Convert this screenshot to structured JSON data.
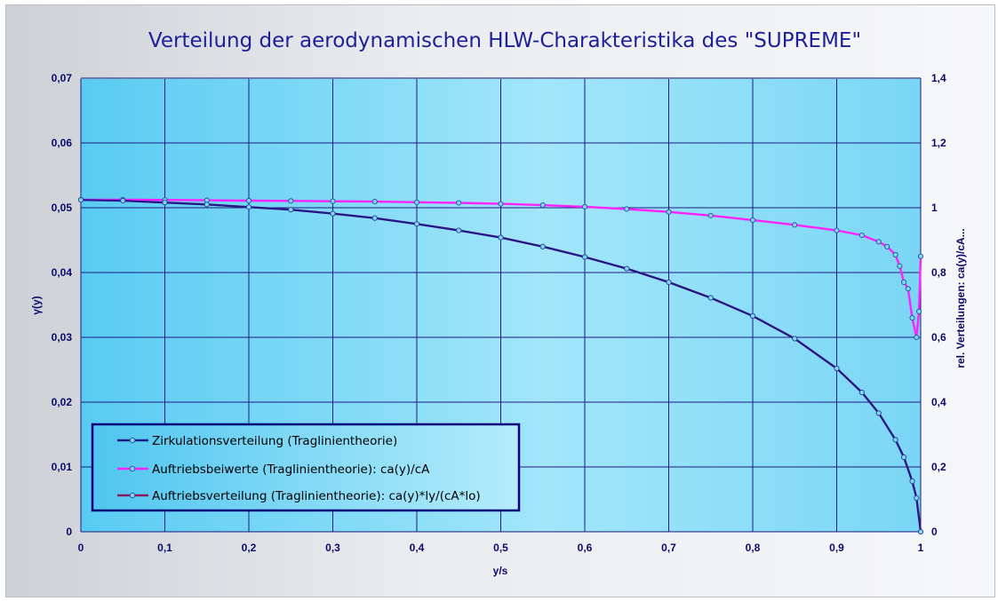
{
  "chart_data": {
    "type": "line",
    "title": "Verteilung der aerodynamischen HLW-Charakteristika des \"SUPREME\"",
    "xlabel": "y/s",
    "ylabel": "γ(y)",
    "y2label": "rel. Verteilungen: ca(y)/cA...",
    "xlim": [
      0,
      1
    ],
    "ylim": [
      0,
      0.07
    ],
    "y2lim": [
      0,
      1.4
    ],
    "x_ticks": [
      0,
      0.1,
      0.2,
      0.3,
      0.4,
      0.5,
      0.6,
      0.7,
      0.8,
      0.9,
      1
    ],
    "x_tick_labels": [
      "0",
      "0,1",
      "0,2",
      "0,3",
      "0,4",
      "0,5",
      "0,6",
      "0,7",
      "0,8",
      "0,9",
      "1"
    ],
    "y_ticks": [
      0,
      0.01,
      0.02,
      0.03,
      0.04,
      0.05,
      0.06,
      0.07
    ],
    "y_tick_labels": [
      "0",
      "0,01",
      "0,02",
      "0,03",
      "0,04",
      "0,05",
      "0,06",
      "0,07"
    ],
    "y2_ticks": [
      0,
      0.2,
      0.4,
      0.6,
      0.8,
      1,
      1.2,
      1.4
    ],
    "y2_tick_labels": [
      "0",
      "0,2",
      "0,4",
      "0,6",
      "0,8",
      "1",
      "1,2",
      "1,4"
    ],
    "grid": true,
    "legend_position": "bottom-left",
    "colors": {
      "plot_bg_outer": "#58cbf2",
      "plot_bg_inner": "#a2e6fa",
      "grid": "#1c1c80",
      "marker_fill": "#7fd6ef",
      "marker_stroke": "#2a4aa0",
      "legend_border": "#00007a"
    },
    "series": [
      {
        "name": "Zirkulationsverteilung (Traglinientheorie)",
        "axis": "left",
        "color": "#1c1a8c",
        "x": [
          0,
          0.05,
          0.1,
          0.15,
          0.2,
          0.25,
          0.3,
          0.35,
          0.4,
          0.45,
          0.5,
          0.55,
          0.6,
          0.65,
          0.7,
          0.75,
          0.8,
          0.85,
          0.9,
          0.93,
          0.95,
          0.97,
          0.98,
          0.99,
          0.995,
          1
        ],
        "y": [
          0.0512,
          0.0511,
          0.0508,
          0.0505,
          0.0501,
          0.0497,
          0.0491,
          0.0484,
          0.0475,
          0.0465,
          0.0454,
          0.044,
          0.0424,
          0.0406,
          0.0385,
          0.0361,
          0.0333,
          0.0298,
          0.0252,
          0.0215,
          0.0183,
          0.0142,
          0.0115,
          0.0078,
          0.0052,
          0
        ]
      },
      {
        "name": "Auftriebsbeiwerte (Traglinientheorie): ca(y)/cA",
        "axis": "right",
        "color": "#ff20ff",
        "x": [
          0,
          0.05,
          0.1,
          0.15,
          0.2,
          0.25,
          0.3,
          0.35,
          0.4,
          0.45,
          0.5,
          0.55,
          0.6,
          0.65,
          0.7,
          0.75,
          0.8,
          0.85,
          0.9,
          0.93,
          0.95,
          0.96,
          0.97,
          0.975,
          0.98,
          0.985,
          0.99,
          0.995,
          0.998,
          1
        ],
        "y": [
          1.025,
          1.025,
          1.024,
          1.023,
          1.022,
          1.021,
          1.02,
          1.019,
          1.017,
          1.015,
          1.012,
          1.008,
          1.003,
          0.996,
          0.987,
          0.976,
          0.962,
          0.947,
          0.93,
          0.915,
          0.895,
          0.88,
          0.855,
          0.82,
          0.77,
          0.75,
          0.66,
          0.6,
          0.68,
          0.85
        ]
      },
      {
        "name": "Auftriebsverteilung (Traglinientheorie): ca(y)*ly/(cA*lo)",
        "axis": "right",
        "color": "#8a1a5a",
        "x": [
          0,
          0.05,
          0.1,
          0.15,
          0.2,
          0.25,
          0.3,
          0.35,
          0.4,
          0.45,
          0.5,
          0.55,
          0.6,
          0.65,
          0.7,
          0.75,
          0.8,
          0.85,
          0.9,
          0.93,
          0.95,
          0.97,
          0.98,
          0.99,
          0.995,
          1
        ],
        "y": [
          1.024,
          1.022,
          1.016,
          1.01,
          1.002,
          0.994,
          0.982,
          0.968,
          0.95,
          0.93,
          0.908,
          0.88,
          0.848,
          0.812,
          0.77,
          0.722,
          0.666,
          0.596,
          0.504,
          0.43,
          0.366,
          0.284,
          0.23,
          0.156,
          0.104,
          0
        ]
      }
    ]
  }
}
